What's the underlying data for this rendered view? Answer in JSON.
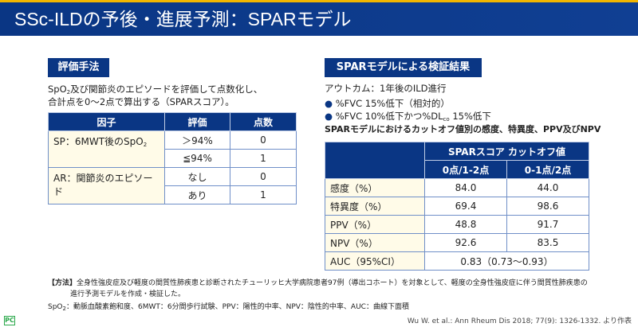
{
  "title": "SSc-ILDの予後・進展予測：SPARモデル",
  "left": {
    "label": "評価手法",
    "desc1_pre": "SpO",
    "desc1_sub": "2",
    "desc1_post": "及び関節炎のエピソードを評価して点数化し、",
    "desc2": "合計点を0～2点で算出する（SPARスコア）。",
    "table": {
      "headers": [
        "因子",
        "評価",
        "点数"
      ],
      "factor1_pre": "SP：6MWT後のSpO",
      "factor1_sub": "2",
      "factor2": "AR：関節炎のエピソード",
      "rows": [
        {
          "eval": "＞94%",
          "score": "0"
        },
        {
          "eval": "≦94%",
          "score": "1"
        },
        {
          "eval": "なし",
          "score": "0"
        },
        {
          "eval": "あり",
          "score": "1"
        }
      ]
    }
  },
  "right": {
    "label": "SPARモデルによる検証結果",
    "outcome": "アウトカム：1年後のILD進行",
    "bullet1": "%FVC 15%低下（相対的）",
    "bullet2_pre": "%FVC 10%低下かつ%DL",
    "bullet2_sub": "co",
    "bullet2_post": " 15%低下",
    "heading": "SPARモデルにおけるカットオフ値別の感度、特異度、PPV及びNPV",
    "table": {
      "group_header": "SPARスコア カットオフ値",
      "col1": "0点/1-2点",
      "col2": "0-1点/2点",
      "rows": [
        {
          "label": "感度（%）",
          "v1": "84.0",
          "v2": "44.0"
        },
        {
          "label": "特異度（%）",
          "v1": "69.4",
          "v2": "98.6"
        },
        {
          "label": "PPV（%）",
          "v1": "48.8",
          "v2": "91.7"
        },
        {
          "label": "NPV（%）",
          "v1": "92.6",
          "v2": "83.5"
        }
      ],
      "auc_label": "AUC（95%CI）",
      "auc_value": "0.83（0.73～0.93）"
    }
  },
  "footer": {
    "method_tag": "【方法】",
    "method1": "全身性強皮症及び軽度の間質性肺疾患と診断されたチューリッヒ大学病院患者97例（導出コホート）を対象として、軽度の全身性強皮症に伴う間質性肺疾患の",
    "method2": "進行予測モデルを作成・検証した。",
    "abbr_pre": "SpO",
    "abbr_sub": "2",
    "abbr_post": "：動脈血酸素飽和度、6MWT：6分間歩行試験、PPV：陽性的中率、NPV：陰性的中率、AUC：曲線下面積",
    "citation": "Wu W. et al.: Ann Rheum Dis 2018; 77(9): 1326-1332. より作表",
    "logo": "PC"
  },
  "colors": {
    "navy": "#0a3684",
    "accent": "#f2b600",
    "factor_bg": "#fffbe8"
  }
}
